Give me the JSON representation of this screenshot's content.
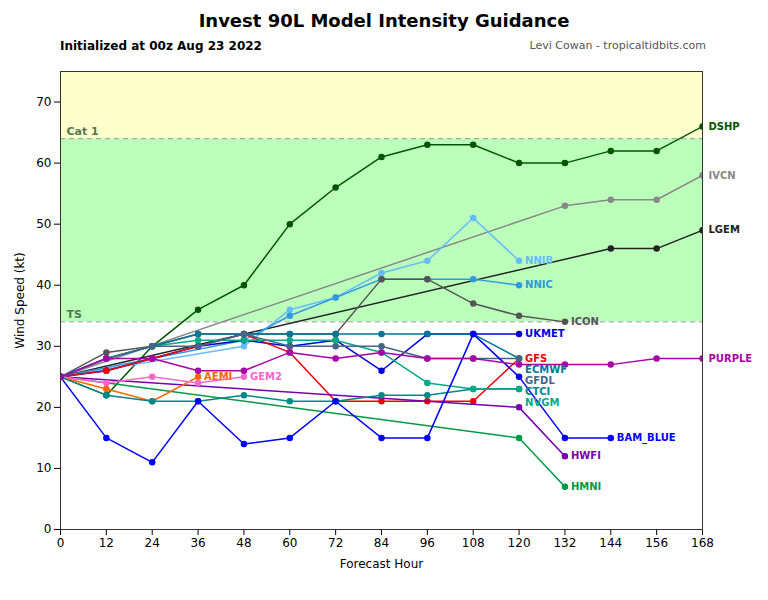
{
  "chart_data": {
    "type": "line",
    "title": "Invest 90L Model Intensity Guidance",
    "subtitle": "Initialized at 00z Aug 23 2022",
    "caption": "Levi Cowan - tropicaltidbits.com",
    "xlabel": "Forecast Hour",
    "ylabel": "Wind Speed (kt)",
    "xlim": [
      0,
      168
    ],
    "ylim": [
      0,
      75
    ],
    "xticks": [
      0,
      12,
      24,
      36,
      48,
      60,
      72,
      84,
      96,
      108,
      120,
      132,
      144,
      156,
      168
    ],
    "yticks": [
      0,
      10,
      20,
      30,
      40,
      50,
      60,
      70
    ],
    "marker": "circle",
    "thresholds": [
      {
        "name": "TS",
        "value": 34,
        "color": "#bbffbb"
      },
      {
        "name": "Cat 1",
        "value": 64,
        "color": "#ffffcc"
      }
    ],
    "series": [
      {
        "name": "DSHP",
        "color": "#005500",
        "x": [
          0,
          12,
          24,
          36,
          48,
          60,
          72,
          84,
          96,
          108,
          120,
          132,
          144,
          156,
          168
        ],
        "values": [
          25,
          22,
          30,
          36,
          40,
          50,
          56,
          61,
          63,
          63,
          60,
          60,
          62,
          62,
          66
        ]
      },
      {
        "name": "IVCN",
        "color": "#888888",
        "x": [
          0,
          132,
          144,
          156,
          168
        ],
        "values": [
          25,
          53,
          54,
          54,
          58
        ]
      },
      {
        "name": "LGEM",
        "color": "#222222",
        "x": [
          0,
          144,
          156,
          168
        ],
        "values": [
          25,
          46,
          46,
          49
        ]
      },
      {
        "name": "NNIB",
        "color": "#66bbff",
        "x": [
          0,
          48,
          60,
          72,
          84,
          96,
          108,
          120
        ],
        "values": [
          25,
          30,
          36,
          38,
          42,
          44,
          51,
          44
        ]
      },
      {
        "name": "NNIC",
        "color": "#3399dd",
        "x": [
          0,
          48,
          60,
          72,
          84,
          96,
          108,
          120
        ],
        "values": [
          25,
          31,
          35,
          38,
          41,
          41,
          41,
          40
        ]
      },
      {
        "name": "ICON",
        "color": "#555555",
        "x": [
          0,
          12,
          24,
          36,
          48,
          60,
          72,
          84,
          96,
          108,
          120,
          132
        ],
        "values": [
          25,
          29,
          30,
          32,
          32,
          32,
          32,
          41,
          41,
          37,
          35,
          34
        ]
      },
      {
        "name": "UKMET",
        "color": "#0000dd",
        "x": [
          0,
          12,
          24,
          36,
          48,
          60,
          72,
          84,
          96,
          108,
          120
        ],
        "values": [
          25,
          26,
          28,
          30,
          31,
          30,
          31,
          26,
          32,
          32,
          32
        ]
      },
      {
        "name": "GFS",
        "color": "#ee0000",
        "x": [
          0,
          12,
          24,
          36,
          48,
          60,
          72,
          84,
          96,
          108,
          120
        ],
        "values": [
          25,
          26,
          28,
          30,
          32,
          29,
          21,
          21,
          21,
          21,
          28
        ]
      },
      {
        "name": "HWFI",
        "color": "#7700aa",
        "x": [
          0,
          120,
          132
        ],
        "values": [
          25,
          20,
          12
        ]
      },
      {
        "name": "HMNI",
        "color": "#009944",
        "x": [
          0,
          120,
          132
        ],
        "values": [
          25,
          15,
          7
        ]
      },
      {
        "name": "AEMI",
        "color": "#ff6600",
        "x": [
          0,
          12,
          24,
          36
        ],
        "values": [
          25,
          23,
          21,
          25
        ]
      },
      {
        "name": "GEM2",
        "color": "#ff66cc",
        "x": [
          0,
          12,
          24,
          36,
          48
        ],
        "values": [
          25,
          24,
          25,
          24,
          25
        ]
      },
      {
        "name": "CTCI",
        "color": "#008888",
        "x": [
          0,
          12,
          24,
          36,
          48,
          60,
          72,
          84,
          96,
          108,
          120
        ],
        "values": [
          25,
          22,
          21,
          21,
          22,
          21,
          21,
          22,
          22,
          23,
          23
        ]
      },
      {
        "name": "NVGM",
        "color": "#00aa88",
        "x": [
          0,
          12,
          24,
          36,
          48,
          60,
          72,
          84,
          96,
          108,
          120
        ],
        "values": [
          25,
          28,
          30,
          31,
          31,
          31,
          31,
          29,
          24,
          23,
          23
        ]
      },
      {
        "name": "ECMWF",
        "color": "#007799",
        "x": [
          0,
          12,
          24,
          36,
          48,
          60,
          72,
          84,
          96,
          108,
          120
        ],
        "values": [
          25,
          28,
          30,
          32,
          32,
          32,
          32,
          32,
          32,
          32,
          28
        ]
      },
      {
        "name": "GFDL",
        "color": "#446688",
        "x": [
          0,
          12,
          24,
          36,
          48,
          60,
          72,
          84,
          96,
          108,
          120
        ],
        "values": [
          25,
          28,
          30,
          30,
          32,
          30,
          30,
          30,
          28,
          28,
          28
        ]
      },
      {
        "name": "BAM_BLUE",
        "color": "#0000ff",
        "x": [
          0,
          12,
          24,
          36,
          48,
          60,
          72,
          84,
          96,
          108,
          120,
          132,
          144
        ],
        "values": [
          25,
          15,
          11,
          21,
          14,
          15,
          21,
          15,
          15,
          32,
          25,
          15,
          15
        ]
      },
      {
        "name": "PURPLE",
        "color": "#aa00aa",
        "x": [
          0,
          12,
          24,
          36,
          48,
          60,
          72,
          84,
          96,
          108,
          120,
          132,
          144,
          156,
          168
        ],
        "values": [
          25,
          28,
          28,
          26,
          26,
          29,
          28,
          29,
          28,
          28,
          27,
          27,
          27,
          28,
          28
        ]
      }
    ]
  }
}
